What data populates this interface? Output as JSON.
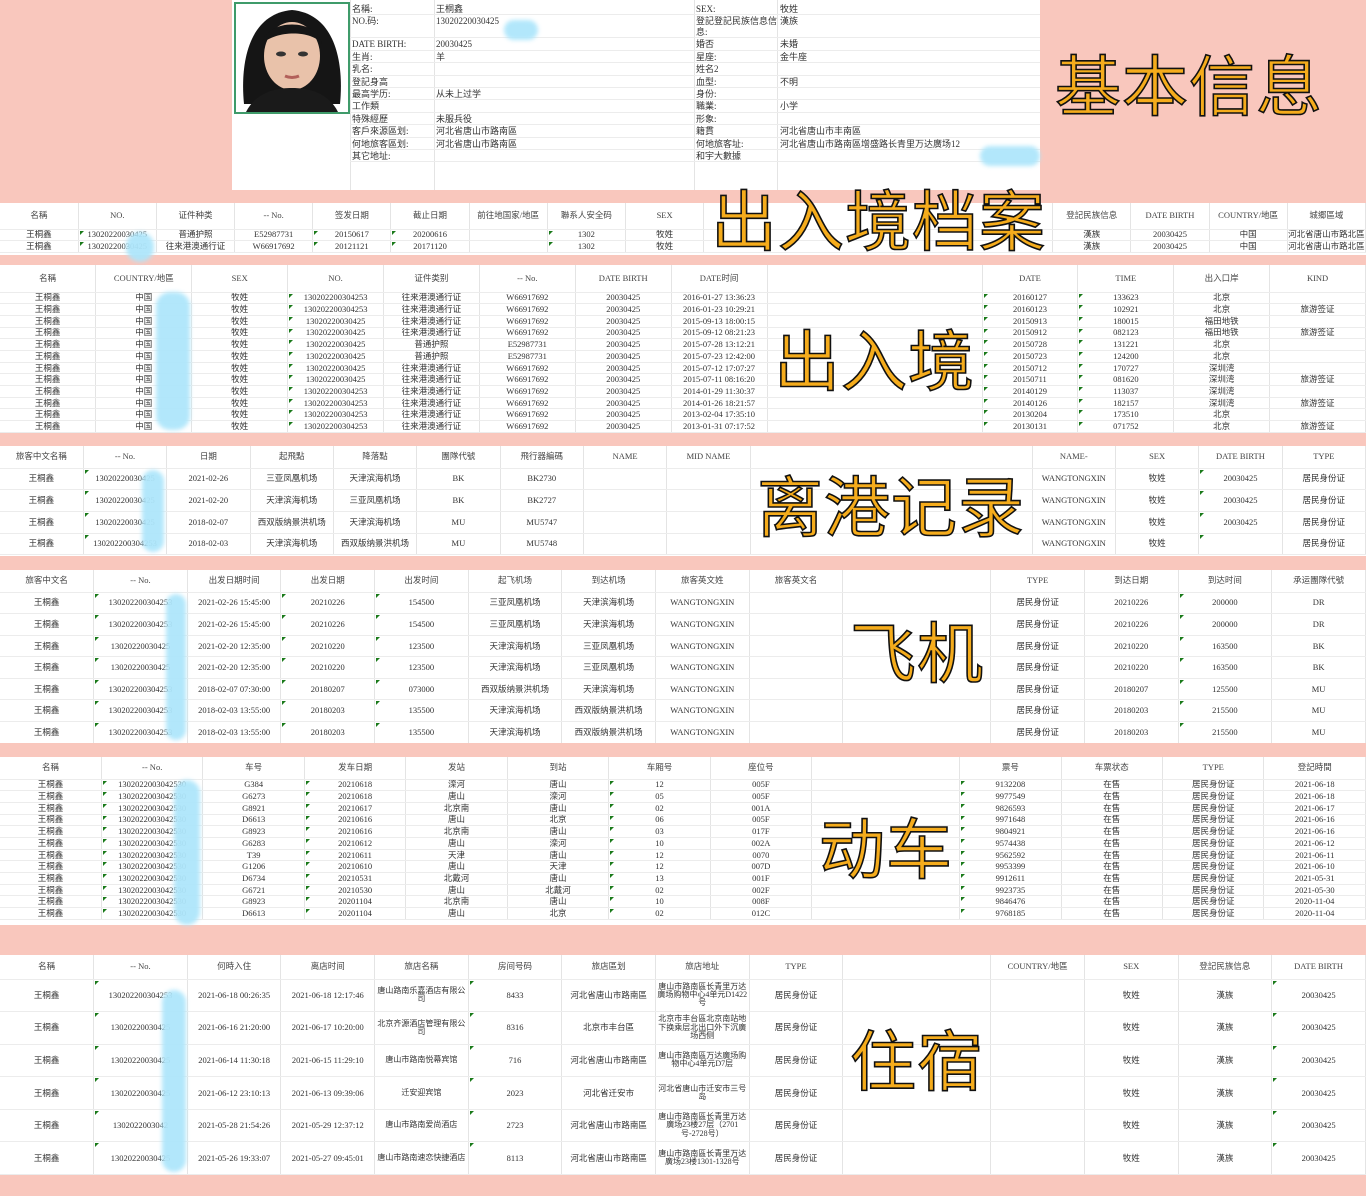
{
  "colors": {
    "background": "#f9c7bd",
    "overlay_text": "#f5ac1c",
    "redaction": "#aee6fb",
    "cell_flag": "#1a7a1a"
  },
  "overlays": {
    "basic": "基本信息",
    "archive": "出入境档案",
    "border": "出入境",
    "departure": "离港记录",
    "flight": "飞机",
    "train": "动车",
    "hotel": "住宿"
  },
  "info": {
    "rows": [
      [
        "名稱:",
        "王桐鑫",
        "SEX:",
        "牧姓"
      ],
      [
        "NO.码:",
        "13020220030425",
        "登記登記民族信息信息:",
        "漢族"
      ],
      [
        "DATE BIRTH:",
        "20030425",
        "婚否",
        "未婚"
      ],
      [
        "生肖:",
        "羊",
        "星座:",
        "金牛座"
      ],
      [
        "乳名:",
        "",
        "姓名2",
        ""
      ],
      [
        "登記身高",
        "",
        "血型:",
        "不明"
      ],
      [
        "最高学历:",
        "从未上过学",
        "身份:",
        ""
      ],
      [
        "工作類",
        "",
        "職業:",
        "小学"
      ],
      [
        "特殊經歷",
        "未服兵役",
        "形象:",
        ""
      ],
      [
        "客戶來源區划:",
        "河北省唐山市路南區",
        "籍貫",
        "河北省唐山市丰南區"
      ],
      [
        "何地旅客區划:",
        "河北省唐山市路南區",
        "何地旅客址:",
        "河北省唐山市路南區增盛路长青里万达廣场12"
      ],
      [
        "其它地址:",
        "",
        "和宇大數據",
        ""
      ]
    ]
  },
  "tables": [
    {
      "id": "archive",
      "columns": [
        "名稱",
        "NO.",
        "证件种类",
        "-- No.",
        "签发日期",
        "截止日期",
        "前往地国家/地區",
        "聯系人安全码",
        "SEX",
        "登記民族信息",
        "DATE BIRTH",
        "COUNTRY/地區",
        "城郷區域"
      ],
      "rows": [
        [
          "王桐鑫",
          "13020220030425",
          "普通护照",
          "E52987731",
          "20150617",
          "20200616",
          "",
          "1302",
          "牧姓",
          "漢族",
          "20030425",
          "中国",
          "河北省唐山市路北區"
        ],
        [
          "王桐鑫",
          "13020220030425",
          "往来港澳通行证",
          "W66917692",
          "20121121",
          "20171120",
          "",
          "1302",
          "牧姓",
          "漢族",
          "20030425",
          "中国",
          "河北省唐山市路北區"
        ]
      ]
    },
    {
      "id": "border",
      "columns": [
        "名稱",
        "COUNTRY/地區",
        "SEX",
        "NO.",
        "证件类别",
        "-- No.",
        "DATE BIRTH",
        "DATE时间",
        "DATE",
        "TIME",
        "出入口岸",
        "KIND"
      ],
      "rows": [
        [
          "王桐鑫",
          "中国",
          "牧姓",
          "130202200304253",
          "往来港澳通行证",
          "W66917692",
          "20030425",
          "2016-01-27 13:36:23",
          "20160127",
          "133623",
          "北京",
          ""
        ],
        [
          "王桐鑫",
          "中国",
          "牧姓",
          "130202200304253",
          "往来港澳通行证",
          "W66917692",
          "20030425",
          "2016-01-23 10:29:21",
          "20160123",
          "102921",
          "北京",
          "旅游签证"
        ],
        [
          "王桐鑫",
          "中国",
          "牧姓",
          "13020220030425",
          "往来港澳通行证",
          "W66917692",
          "20030425",
          "2015-09-13 18:00:15",
          "20150913",
          "180015",
          "福田地铁",
          ""
        ],
        [
          "王桐鑫",
          "中国",
          "牧姓",
          "13020220030425",
          "往来港澳通行证",
          "W66917692",
          "20030425",
          "2015-09-12 08:21:23",
          "20150912",
          "082123",
          "福田地铁",
          "旅游签证"
        ],
        [
          "王桐鑫",
          "中国",
          "牧姓",
          "13020220030425",
          "普通护照",
          "E52987731",
          "20030425",
          "2015-07-28 13:12:21",
          "20150728",
          "131221",
          "北京",
          ""
        ],
        [
          "王桐鑫",
          "中国",
          "牧姓",
          "13020220030425",
          "普通护照",
          "E52987731",
          "20030425",
          "2015-07-23 12:42:00",
          "20150723",
          "124200",
          "北京",
          ""
        ],
        [
          "王桐鑫",
          "中国",
          "牧姓",
          "13020220030425",
          "往来港澳通行证",
          "W66917692",
          "20030425",
          "2015-07-12 17:07:27",
          "20150712",
          "170727",
          "深圳湾",
          ""
        ],
        [
          "王桐鑫",
          "中国",
          "牧姓",
          "13020220030425",
          "往来港澳通行证",
          "W66917692",
          "20030425",
          "2015-07-11 08:16:20",
          "20150711",
          "081620",
          "深圳湾",
          "旅游签证"
        ],
        [
          "王桐鑫",
          "中国",
          "牧姓",
          "130202200304253",
          "往来港澳通行证",
          "W66917692",
          "20030425",
          "2014-01-29 11:30:37",
          "20140129",
          "113037",
          "深圳湾",
          ""
        ],
        [
          "王桐鑫",
          "中国",
          "牧姓",
          "130202200304253",
          "往来港澳通行证",
          "W66917692",
          "20030425",
          "2014-01-26 18:21:57",
          "20140126",
          "182157",
          "深圳湾",
          "旅游签证"
        ],
        [
          "王桐鑫",
          "中国",
          "牧姓",
          "130202200304253",
          "往来港澳通行证",
          "W66917692",
          "20030425",
          "2013-02-04 17:35:10",
          "20130204",
          "173510",
          "北京",
          ""
        ],
        [
          "王桐鑫",
          "中国",
          "牧姓",
          "130202200304253",
          "往来港澳通行证",
          "W66917692",
          "20030425",
          "2013-01-31 07:17:52",
          "20130131",
          "071752",
          "北京",
          "旅游签证"
        ]
      ]
    },
    {
      "id": "departure",
      "columns": [
        "旅客中文名稱",
        "-- No.",
        "日期",
        "起飛點",
        "降落點",
        "團隊代號",
        "飛行器編碼",
        "NAME",
        "MID NAME",
        "NAME-",
        "SEX",
        "DATE BIRTH",
        "TYPE"
      ],
      "rows": [
        [
          "王桐鑫",
          "13020220030425",
          "2021-02-26",
          "三亚凤凰机场",
          "天津滨海机场",
          "BK",
          "BK2730",
          "",
          "",
          "WANGTONGXIN",
          "牧姓",
          "20030425",
          "居民身份证"
        ],
        [
          "王桐鑫",
          "13020220030425",
          "2021-02-20",
          "天津滨海机场",
          "三亚凤凰机场",
          "BK",
          "BK2727",
          "",
          "",
          "WANGTONGXIN",
          "牧姓",
          "20030425",
          "居民身份证"
        ],
        [
          "王桐鑫",
          "13020220030425",
          "2018-02-07",
          "西双版纳景洪机场",
          "天津滨海机场",
          "MU",
          "MU5747",
          "",
          "",
          "WANGTONGXIN",
          "牧姓",
          "20030425",
          "居民身份证"
        ],
        [
          "王桐鑫",
          "130202200304253",
          "2018-02-03",
          "天津滨海机场",
          "西双版纳景洪机场",
          "MU",
          "MU5748",
          "",
          "",
          "WANGTONGXIN",
          "牧姓",
          "",
          "居民身份证"
        ]
      ]
    },
    {
      "id": "flight",
      "columns": [
        "旅客中文名",
        "-- No.",
        "出发日期时间",
        "出发日期",
        "出发时间",
        "起飞机场",
        "到达机场",
        "旅客英文姓",
        "旅客英文名",
        "TYPE",
        "到达日期",
        "到达时间",
        "承运團隊代號"
      ],
      "rows": [
        [
          "王桐鑫",
          "130202200304253",
          "2021-02-26 15:45:00",
          "20210226",
          "154500",
          "三亚凤凰机场",
          "天津滨海机场",
          "WANGTONGXIN",
          "",
          "居民身份证",
          "20210226",
          "200000",
          "DR"
        ],
        [
          "王桐鑫",
          "130202200304253",
          "2021-02-26 15:45:00",
          "20210226",
          "154500",
          "三亚凤凰机场",
          "天津滨海机场",
          "WANGTONGXIN",
          "",
          "居民身份证",
          "20210226",
          "200000",
          "DR"
        ],
        [
          "王桐鑫",
          "13020220030425",
          "2021-02-20 12:35:00",
          "20210220",
          "123500",
          "天津滨海机场",
          "三亚凤凰机场",
          "WANGTONGXIN",
          "",
          "居民身份证",
          "20210220",
          "163500",
          "BK"
        ],
        [
          "王桐鑫",
          "13020220030425",
          "2021-02-20 12:35:00",
          "20210220",
          "123500",
          "天津滨海机场",
          "三亚凤凰机场",
          "WANGTONGXIN",
          "",
          "居民身份证",
          "20210220",
          "163500",
          "BK"
        ],
        [
          "王桐鑫",
          "130202200304253",
          "2018-02-07 07:30:00",
          "20180207",
          "073000",
          "西双版纳景洪机场",
          "天津滨海机场",
          "WANGTONGXIN",
          "",
          "居民身份证",
          "20180207",
          "125500",
          "MU"
        ],
        [
          "王桐鑫",
          "130202200304253",
          "2018-02-03 13:55:00",
          "20180203",
          "135500",
          "天津滨海机场",
          "西双版纳景洪机场",
          "WANGTONGXIN",
          "",
          "居民身份证",
          "20180203",
          "215500",
          "MU"
        ],
        [
          "王桐鑫",
          "130202200304253",
          "2018-02-03 13:55:00",
          "20180203",
          "135500",
          "天津滨海机场",
          "西双版纳景洪机场",
          "WANGTONGXIN",
          "",
          "居民身份证",
          "20180203",
          "215500",
          "MU"
        ]
      ]
    },
    {
      "id": "train",
      "columns": [
        "名稱",
        "-- No.",
        "车号",
        "发车日期",
        "发站",
        "到站",
        "车厢号",
        "座位号",
        "票号",
        "车票状态",
        "TYPE",
        "登記時間"
      ],
      "rows": [
        [
          "王桐鑫",
          "1302022003042530",
          "G384",
          "20210618",
          "滦河",
          "唐山",
          "12",
          "005F",
          "9132208",
          "在售",
          "居民身份证",
          "2021-06-18"
        ],
        [
          "王桐鑫",
          "1302022003042530",
          "G6273",
          "20210618",
          "唐山",
          "滦河",
          "05",
          "005F",
          "9977549",
          "在售",
          "居民身份证",
          "2021-06-18"
        ],
        [
          "王桐鑫",
          "1302022003042530",
          "G8921",
          "20210617",
          "北京南",
          "唐山",
          "02",
          "001A",
          "9826593",
          "在售",
          "居民身份证",
          "2021-06-17"
        ],
        [
          "王桐鑫",
          "1302022003042530",
          "D6613",
          "20210616",
          "唐山",
          "北京",
          "06",
          "005F",
          "9971648",
          "在售",
          "居民身份证",
          "2021-06-16"
        ],
        [
          "王桐鑫",
          "1302022003042530",
          "G8923",
          "20210616",
          "北京南",
          "唐山",
          "03",
          "017F",
          "9804921",
          "在售",
          "居民身份证",
          "2021-06-16"
        ],
        [
          "王桐鑫",
          "1302022003042530",
          "G6283",
          "20210612",
          "唐山",
          "滦河",
          "10",
          "002A",
          "9574438",
          "在售",
          "居民身份证",
          "2021-06-12"
        ],
        [
          "王桐鑫",
          "1302022003042530",
          "T39",
          "20210611",
          "天津",
          "唐山",
          "12",
          "0070",
          "9562592",
          "在售",
          "居民身份证",
          "2021-06-11"
        ],
        [
          "王桐鑫",
          "1302022003042530",
          "G1206",
          "20210610",
          "唐山",
          "天津",
          "12",
          "007D",
          "9953399",
          "在售",
          "居民身份证",
          "2021-06-10"
        ],
        [
          "王桐鑫",
          "1302022003042530",
          "D6734",
          "20210531",
          "北戴河",
          "唐山",
          "13",
          "001F",
          "9912611",
          "在售",
          "居民身份证",
          "2021-05-31"
        ],
        [
          "王桐鑫",
          "1302022003042530",
          "G6721",
          "20210530",
          "唐山",
          "北戴河",
          "02",
          "002F",
          "9923735",
          "在售",
          "居民身份证",
          "2021-05-30"
        ],
        [
          "王桐鑫",
          "1302022003042530",
          "G8923",
          "20201104",
          "北京南",
          "唐山",
          "10",
          "008F",
          "9846476",
          "在售",
          "居民身份证",
          "2020-11-04"
        ],
        [
          "王桐鑫",
          "1302022003042530",
          "D6613",
          "20201104",
          "唐山",
          "北京",
          "02",
          "012C",
          "9768185",
          "在售",
          "居民身份证",
          "2020-11-04"
        ]
      ]
    },
    {
      "id": "hotel",
      "columns": [
        "名稱",
        "-- No.",
        "何時入住",
        "离店时间",
        "旅店名稱",
        "房间号码",
        "旅店區划",
        "旅店地址",
        "TYPE",
        "COUNTRY/地區",
        "SEX",
        "登記民族信息",
        "DATE BIRTH"
      ],
      "rows": [
        [
          "王桐鑫",
          "130202200304253",
          "2021-06-18 00:26:35",
          "2021-06-18 12:17:46",
          "唐山路南乐嘉酒店有限公司",
          "8433",
          "河北省唐山市路南區",
          "唐山市路南區长青里万达廣场购物中心4单元D1422号",
          "居民身份证",
          "",
          "牧姓",
          "漢族",
          "20030425"
        ],
        [
          "王桐鑫",
          "13020220030425",
          "2021-06-16 21:20:00",
          "2021-06-17 10:20:00",
          "北京齐源酒店管理有限公司",
          "8316",
          "北京市丰台區",
          "北京市丰台區北京南站地下换乘层北出口外下沉廣场西侧",
          "居民身份证",
          "",
          "牧姓",
          "漢族",
          "20030425"
        ],
        [
          "王桐鑫",
          "13020220030425",
          "2021-06-14 11:30:18",
          "2021-06-15 11:29:10",
          "唐山市路南悦幕宾馆",
          "716",
          "河北省唐山市路南區",
          "唐山市路南區万达廣场购物中心4单元D7层",
          "居民身份证",
          "",
          "牧姓",
          "漢族",
          "20030425"
        ],
        [
          "王桐鑫",
          "13020220030425",
          "2021-06-12 23:10:13",
          "2021-06-13 09:39:06",
          "迁安迎宾馆",
          "2023",
          "河北省迁安市",
          "河北省唐山市迁安市三号岛",
          "居民身份证",
          "",
          "牧姓",
          "漢族",
          "20030425"
        ],
        [
          "王桐鑫",
          "1302022003042",
          "2021-05-28 21:54:26",
          "2021-05-29 12:37:12",
          "唐山市路南爱尚酒店",
          "2723",
          "河北省唐山市路南區",
          "唐山市路南區长青里万达廣场23楼27层（2701号-2728号）",
          "居民身份证",
          "",
          "牧姓",
          "漢族",
          "20030425"
        ],
        [
          "王桐鑫",
          "13020220030425",
          "2021-05-26 19:33:07",
          "2021-05-27 09:45:01",
          "唐山市路南速恋快捷酒店",
          "8113",
          "河北省唐山市路南區",
          "唐山市路南區长青里万达廣场23楼1301-1328号",
          "居民身份证",
          "",
          "牧姓",
          "漢族",
          "20030425"
        ]
      ]
    }
  ]
}
